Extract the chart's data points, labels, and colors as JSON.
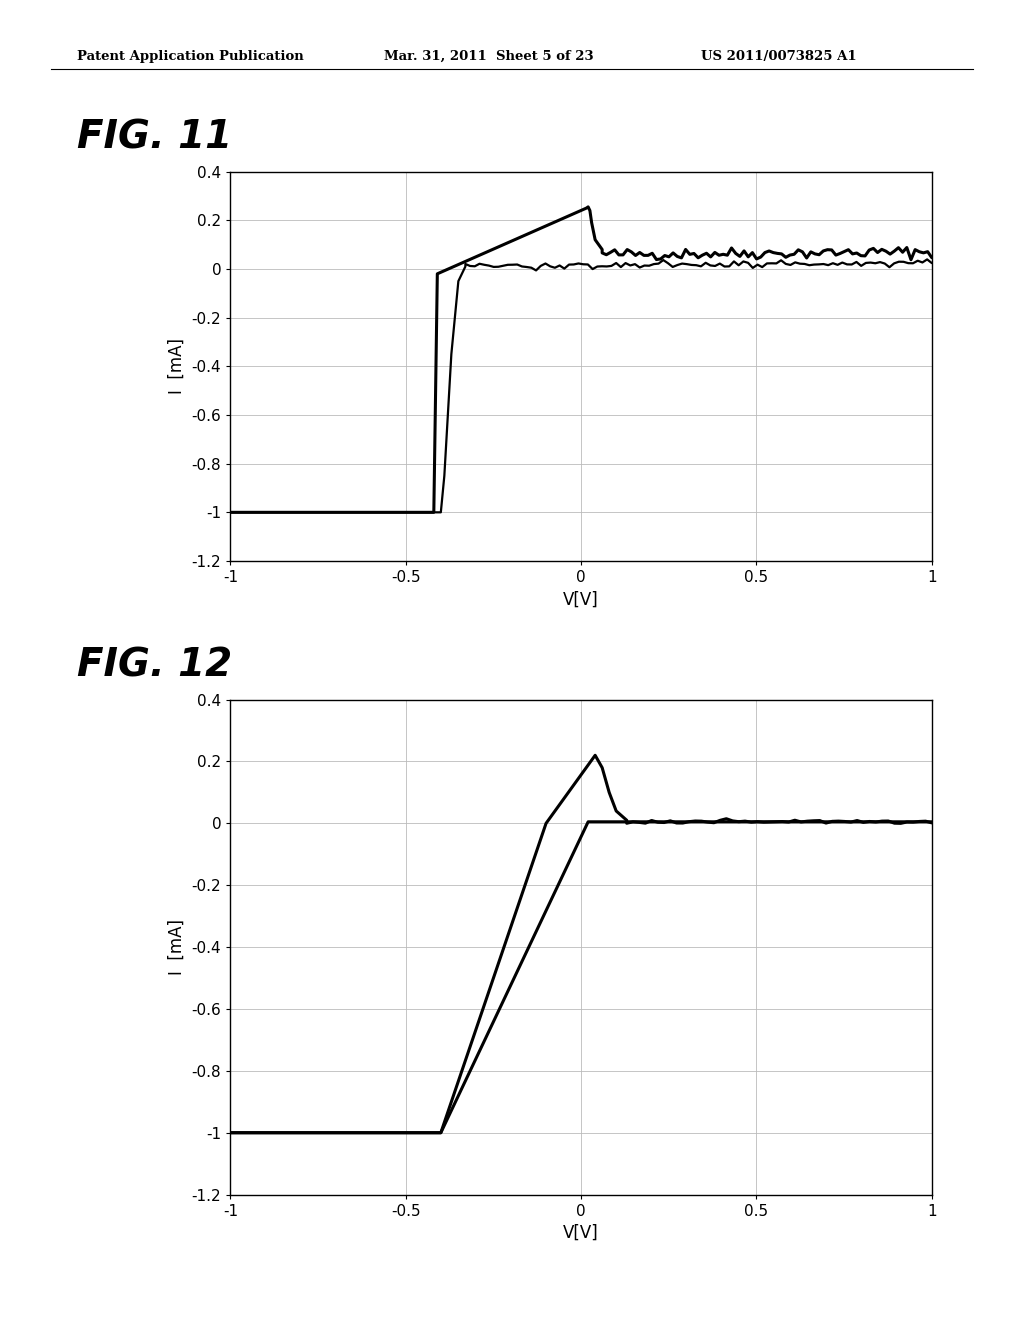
{
  "page_header_left": "Patent Application Publication",
  "page_header_mid": "Mar. 31, 2011  Sheet 5 of 23",
  "page_header_right": "US 2011/0073825 A1",
  "fig11_label": "FIG. 11",
  "fig12_label": "FIG. 12",
  "xlabel": "V[V]",
  "ylabel": "I  [mA]",
  "xlim": [
    -1,
    1
  ],
  "ylim": [
    -1.2,
    0.4
  ],
  "xticks": [
    -1,
    -0.5,
    0,
    0.5,
    1
  ],
  "yticks": [
    -1.2,
    -1,
    -0.8,
    -0.6,
    -0.4,
    -0.2,
    0,
    0.2,
    0.4
  ],
  "background_color": "#ffffff",
  "plot_bg_color": "#ffffff",
  "line_color": "#000000",
  "grid_color": "#bbbbbb"
}
